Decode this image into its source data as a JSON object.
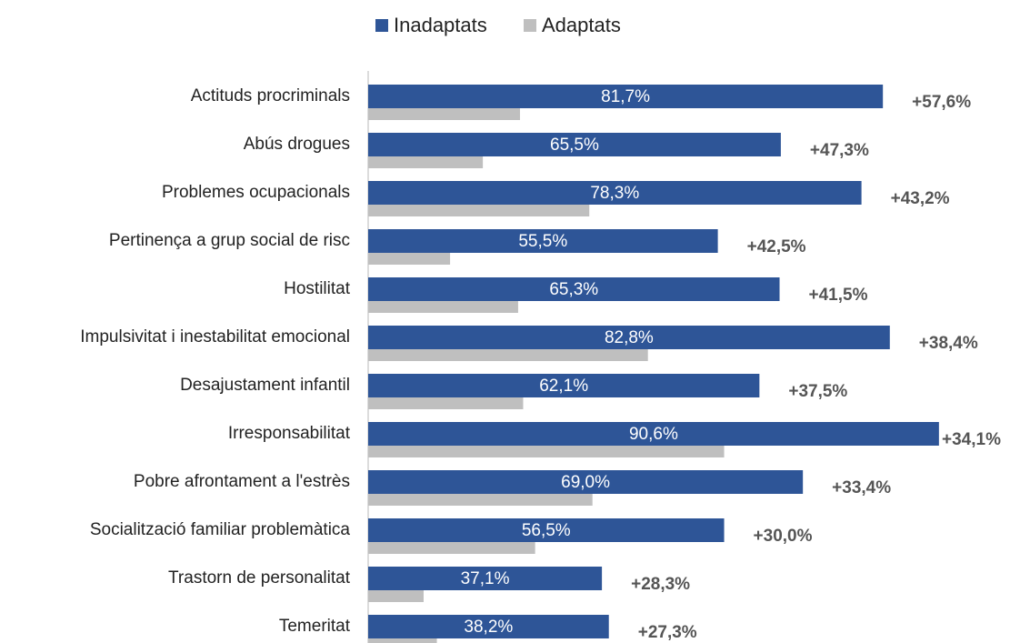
{
  "chart_data": {
    "type": "barh",
    "categories": [
      "Actituds procriminals",
      "Abús drogues",
      "Problemes ocupacionals",
      "Pertinença a grup social de risc",
      "Hostilitat",
      "Impulsivitat i inestabilitat emocional",
      "Desajustament infantil",
      "Irresponsabilitat",
      "Pobre afrontament a l'estrès",
      "Socialització familiar problemàtica",
      "Trastorn de personalitat",
      "Temeritat"
    ],
    "series": [
      {
        "name": "Inadaptats",
        "color": "#2e5597",
        "values": [
          81.7,
          65.5,
          78.3,
          55.5,
          65.3,
          82.8,
          62.1,
          90.6,
          69.0,
          56.5,
          37.1,
          38.2
        ],
        "value_labels": [
          "81,7%",
          "65,5%",
          "78,3%",
          "55,5%",
          "65,3%",
          "82,8%",
          "62,1%",
          "90,6%",
          "69,0%",
          "56,5%",
          "37,1%",
          "38,2%"
        ]
      },
      {
        "name": "Adaptats",
        "color": "#bfbfbf",
        "values": [
          24.1,
          18.2,
          35.1,
          13.0,
          23.8,
          44.4,
          24.6,
          56.5,
          35.6,
          26.5,
          8.8,
          10.9
        ]
      }
    ],
    "annotations": [
      "+57,6%",
      "+47,3%",
      "+43,2%",
      "+42,5%",
      "+41,5%",
      "+38,4%",
      "+37,5%",
      "+34,1%",
      "+33,4%",
      "+30,0%",
      "+28,3%",
      "+27,3%"
    ],
    "legend": "top"
  }
}
